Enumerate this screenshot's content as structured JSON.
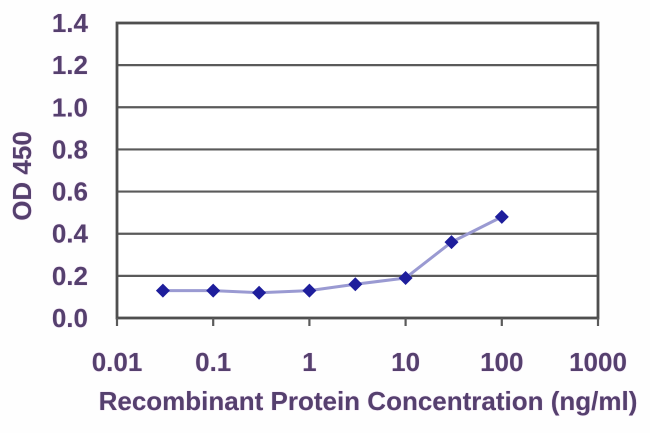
{
  "chart_data": {
    "type": "line",
    "title": "",
    "xlabel": "Recombinant Protein Concentration (ng/ml)",
    "ylabel": "OD 450",
    "xscale": "log",
    "xlim": [
      0.01,
      1000
    ],
    "ylim": [
      0,
      1.4
    ],
    "x_tick_values": [
      0.01,
      0.1,
      1,
      10,
      100,
      1000
    ],
    "x_tick_labels": [
      "0.01",
      "0.1",
      "1",
      "10",
      "100",
      "1000"
    ],
    "y_tick_values": [
      0.0,
      0.2,
      0.4,
      0.6,
      0.8,
      1.0,
      1.2,
      1.4
    ],
    "y_tick_labels": [
      "0.0",
      "0.2",
      "0.4",
      "0.6",
      "0.8",
      "1.0",
      "1.2",
      "1.4"
    ],
    "grid": "horizontal",
    "legend": "none",
    "series": [
      {
        "name": "OD 450",
        "marker": "diamond",
        "x": [
          0.03,
          0.1,
          0.3,
          1,
          3,
          10,
          30,
          100
        ],
        "y": [
          0.13,
          0.13,
          0.12,
          0.13,
          0.16,
          0.19,
          0.36,
          0.48
        ]
      }
    ]
  },
  "colors": {
    "background": "#fefefe",
    "plot_fill": "#ffffff",
    "border": "#4f4f4f",
    "grid": "#5a5a5a",
    "line": "#9a9ad2",
    "marker": "#1e1e9c",
    "text": "#55406e"
  }
}
